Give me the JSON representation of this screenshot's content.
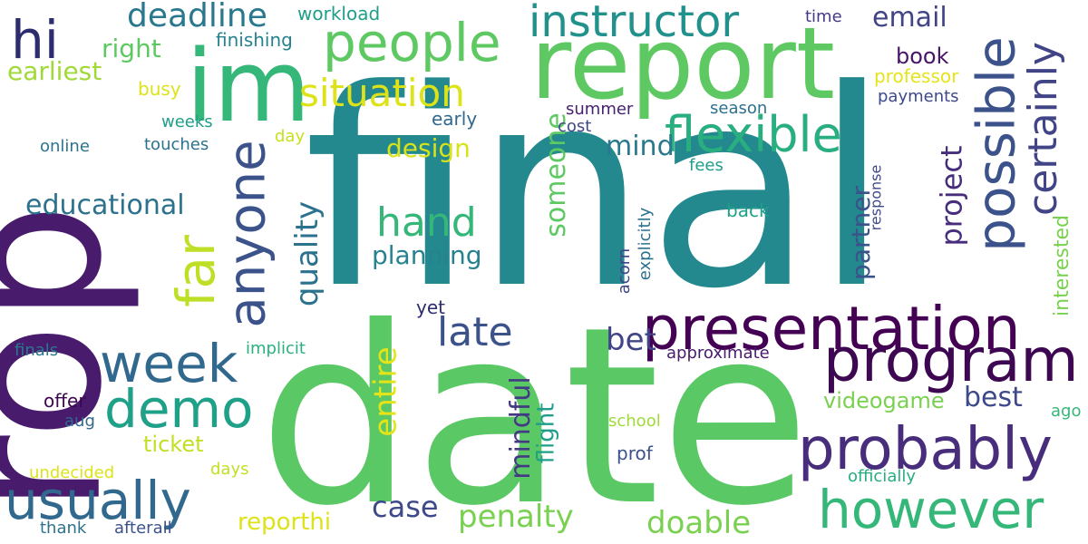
{
  "words": [
    {
      "text": "final",
      "color": "#23898e"
    },
    {
      "text": "date",
      "color": "#5ac864"
    },
    {
      "text": "rop",
      "color": "#481b6d"
    },
    {
      "text": "report",
      "color": "#5ec962"
    },
    {
      "text": "im",
      "color": "#35b779"
    },
    {
      "text": "presentation",
      "color": "#440154"
    },
    {
      "text": "program",
      "color": "#3e0751"
    },
    {
      "text": "probably",
      "color": "#472d7b"
    },
    {
      "text": "possible",
      "color": "#3b528b"
    },
    {
      "text": "certainly",
      "color": "#414487"
    },
    {
      "text": "people",
      "color": "#5ec962"
    },
    {
      "text": "instructor",
      "color": "#21918c"
    },
    {
      "text": "situation",
      "color": "#dde318"
    },
    {
      "text": "flexible",
      "color": "#29af7f"
    },
    {
      "text": "hi",
      "color": "#2c2c6e"
    },
    {
      "text": "usually",
      "color": "#31688e"
    },
    {
      "text": "week",
      "color": "#31688e"
    },
    {
      "text": "demo",
      "color": "#1fa088"
    },
    {
      "text": "however",
      "color": "#35b779"
    },
    {
      "text": "anyone",
      "color": "#3b528b"
    },
    {
      "text": "far",
      "color": "#bddf26"
    },
    {
      "text": "hand",
      "color": "#35b779"
    },
    {
      "text": "late",
      "color": "#3b528b"
    },
    {
      "text": "deadline",
      "color": "#2a788e"
    },
    {
      "text": "email",
      "color": "#414487"
    },
    {
      "text": "mind",
      "color": "#2a788e"
    },
    {
      "text": "someone",
      "color": "#5ec962"
    },
    {
      "text": "quality",
      "color": "#2c728e"
    },
    {
      "text": "project",
      "color": "#472d7b"
    },
    {
      "text": "partner",
      "color": "#3b528b"
    },
    {
      "text": "interested",
      "color": "#7ad151"
    },
    {
      "text": "educational",
      "color": "#2c728e"
    },
    {
      "text": "planning",
      "color": "#26828e"
    },
    {
      "text": "design",
      "color": "#d8e219"
    },
    {
      "text": "bet",
      "color": "#414487"
    },
    {
      "text": "best",
      "color": "#3e4989"
    },
    {
      "text": "entire",
      "color": "#e5e419"
    },
    {
      "text": "mindful",
      "color": "#443983"
    },
    {
      "text": "flight",
      "color": "#1f9e89"
    },
    {
      "text": "videogame",
      "color": "#7ad151"
    },
    {
      "text": "penalty",
      "color": "#7ad151"
    },
    {
      "text": "doable",
      "color": "#7ad151"
    },
    {
      "text": "case",
      "color": "#3e4989"
    },
    {
      "text": "reporthi",
      "color": "#dde318"
    },
    {
      "text": "ticket",
      "color": "#c2df23"
    },
    {
      "text": "book",
      "color": "#481467"
    },
    {
      "text": "right",
      "color": "#5ec962"
    },
    {
      "text": "earliest",
      "color": "#a0da39"
    },
    {
      "text": "workload",
      "color": "#1f9e89"
    },
    {
      "text": "finishing",
      "color": "#26828e"
    },
    {
      "text": "time",
      "color": "#443a83"
    },
    {
      "text": "professor",
      "color": "#e5e419"
    },
    {
      "text": "payments",
      "color": "#3e4989"
    },
    {
      "text": "busy",
      "color": "#dde318"
    },
    {
      "text": "weeks",
      "color": "#1f9e89"
    },
    {
      "text": "online",
      "color": "#2c728e"
    },
    {
      "text": "touches",
      "color": "#2c728e"
    },
    {
      "text": "day",
      "color": "#c8e020"
    },
    {
      "text": "early",
      "color": "#31688e"
    },
    {
      "text": "summer",
      "color": "#482173"
    },
    {
      "text": "cost",
      "color": "#3e4989"
    },
    {
      "text": "season",
      "color": "#2d708e"
    },
    {
      "text": "fees",
      "color": "#1f9e89"
    },
    {
      "text": "back",
      "color": "#1fa088"
    },
    {
      "text": "response",
      "color": "#3e4989"
    },
    {
      "text": "explicitly",
      "color": "#2c728e"
    },
    {
      "text": "acorn",
      "color": "#404688"
    },
    {
      "text": "yet",
      "color": "#2c2c6e"
    },
    {
      "text": "approximate",
      "color": "#481a6c"
    },
    {
      "text": "implicit",
      "color": "#2ab07f"
    },
    {
      "text": "finals",
      "color": "#2a788e"
    },
    {
      "text": "offer",
      "color": "#3e0751"
    },
    {
      "text": "aug",
      "color": "#31688e"
    },
    {
      "text": "school",
      "color": "#a0da39"
    },
    {
      "text": "ago",
      "color": "#35b779"
    },
    {
      "text": "prof",
      "color": "#3b528b"
    },
    {
      "text": "officially",
      "color": "#27ad81"
    },
    {
      "text": "undecided",
      "color": "#dde318"
    },
    {
      "text": "days",
      "color": "#c2df23"
    },
    {
      "text": "thank",
      "color": "#2c728e"
    },
    {
      "text": "afterall",
      "color": "#3b528b"
    }
  ]
}
